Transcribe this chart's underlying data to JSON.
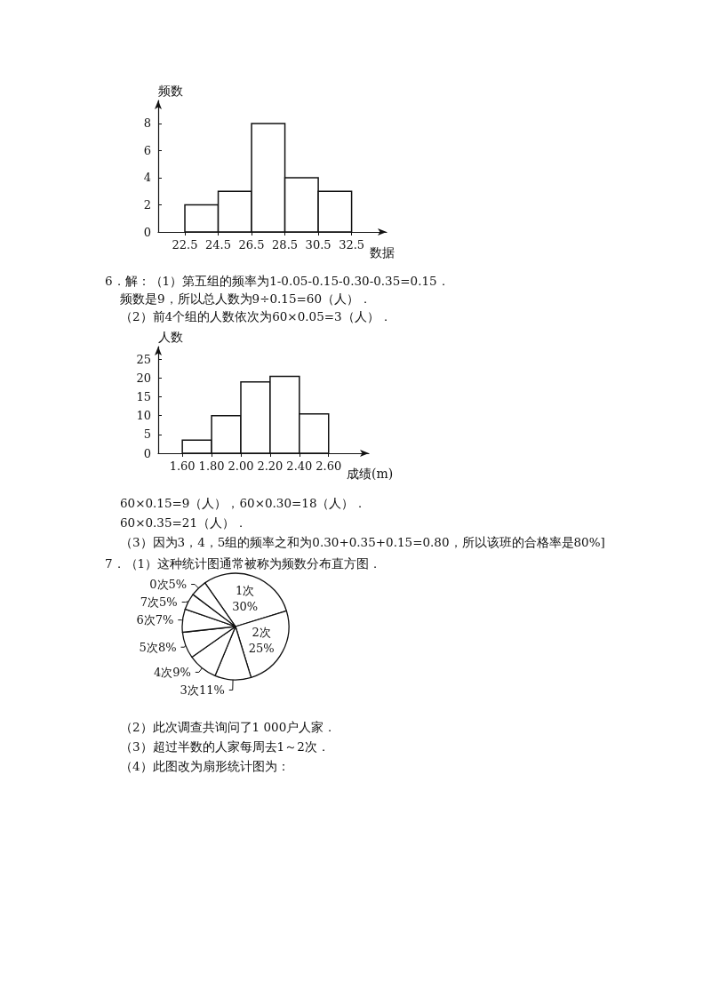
{
  "chart_data": [
    {
      "type": "histogram",
      "ylabel": "频数",
      "xlabel": "数据",
      "bins": [
        22.5,
        24.5,
        26.5,
        28.5,
        30.5,
        32.5
      ],
      "values": [
        2,
        3,
        8,
        4,
        3
      ],
      "xlim": [
        20.9,
        34.6
      ],
      "xticks": [
        22.5,
        24.5,
        26.5,
        28.5,
        30.5,
        32.5
      ],
      "ylim": [
        0,
        9.7
      ],
      "yticks": [
        0,
        2,
        4,
        6,
        8
      ],
      "color": "#ffffff"
    },
    {
      "type": "histogram",
      "title": "6．解：（1）第五组的频率为1-0.05-0.15-0.30-0.35=0.15．",
      "subtitle": "频数是9，所以总人数为9÷0.15=60（人）．",
      "ylabel": "人数",
      "xlabel": "成绩(m)",
      "bins": [
        1.6,
        1.8,
        2.0,
        2.2,
        2.4,
        2.6
      ],
      "values": [
        3.5,
        10,
        19,
        20.5,
        10.5
      ],
      "xlim": [
        1.435,
        2.875
      ],
      "xticks": [
        {
          "value": 1.6,
          "label": "1.60"
        },
        {
          "value": 1.8,
          "label": "1.80"
        },
        {
          "value": 2.0,
          "label": "2.00"
        },
        {
          "value": 2.2,
          "label": "2.20"
        },
        {
          "value": 2.4,
          "label": "2.40"
        },
        {
          "value": 2.6,
          "label": "2.60"
        }
      ],
      "ylim": [
        0,
        28.4
      ],
      "yticks": [
        0,
        5,
        10,
        15,
        20,
        25
      ],
      "color": "#ffffff",
      "annotations": [
        "（2）前4个组的人数依次为60×0.05=3（人）．",
        "60×0.15=9（人），60×0.30=18（人）．",
        "60×0.35=21（人）．",
        "（3）因为3，4，5组的频率之和为0.30+0.35+0.15=0.80，所以该班的合格率是80%]"
      ]
    },
    {
      "type": "pie",
      "title": "7．（1）这种统计图通常被称为频数分布直方图．",
      "categories": [
        "1次",
        "2次",
        "3次",
        "4次",
        "5次",
        "6次",
        "7次",
        "0次"
      ],
      "values": [
        30,
        25,
        11,
        9,
        8,
        7,
        5,
        5
      ],
      "value_labels": [
        "30%",
        "25%",
        "11%",
        "9%",
        "8%",
        "7%",
        "5%",
        "5%"
      ],
      "colors": [
        "#ffffff",
        "#ffffff",
        "#ffffff",
        "#ffffff",
        "#ffffff",
        "#ffffff",
        "#ffffff",
        "#ffffff"
      ],
      "annotations": [
        "（2）此次调查共询问了1 000户人家．",
        "（3）超过半数的人家每周去1～2次．",
        "（4）此图改为扇形统计图为："
      ]
    }
  ]
}
